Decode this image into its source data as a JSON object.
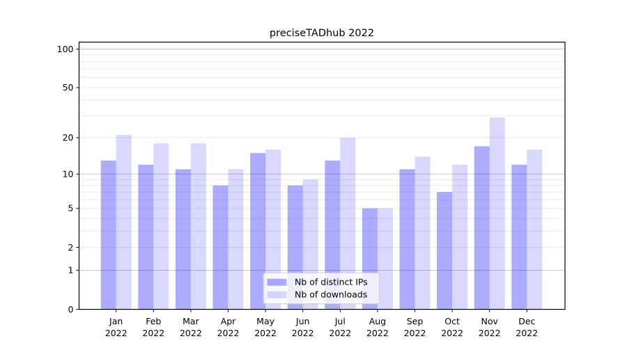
{
  "chart_data": {
    "type": "bar",
    "title": "preciseTADhub 2022",
    "categories": [
      "Jan",
      "Feb",
      "Mar",
      "Apr",
      "May",
      "Jun",
      "Jul",
      "Aug",
      "Sep",
      "Oct",
      "Nov",
      "Dec"
    ],
    "category_year": "2022",
    "series": [
      {
        "name": "Nb of distinct IPs",
        "color": "rgba(0,0,255,0.33)",
        "solid_color": "#aaaaff",
        "values": [
          13,
          12,
          11,
          8,
          15,
          8,
          13,
          5,
          11,
          7,
          17,
          12
        ]
      },
      {
        "name": "Nb of downloads",
        "color": "rgba(0,0,255,0.15)",
        "solid_color": "#d9d9ff",
        "values": [
          21,
          18,
          18,
          11,
          16,
          9,
          20,
          5,
          14,
          12,
          29,
          16
        ]
      }
    ],
    "y_axis": {
      "scale": "log10(value+1)",
      "tick_labels": [
        0,
        1,
        2,
        5,
        10,
        20,
        50,
        100
      ],
      "limit_top": 113,
      "limit_bottom": 0
    },
    "x_axis": {
      "tick_label_line2_is_year": true
    },
    "grid": {
      "major_values": [
        1,
        10,
        100
      ],
      "minor_values": [
        2,
        3,
        4,
        5,
        6,
        7,
        8,
        9,
        20,
        30,
        40,
        50,
        60,
        70,
        80,
        90
      ],
      "major_color": "#c6c6c6",
      "minor_color": "#ececec"
    },
    "legend": {
      "position": "lower-center",
      "background": "rgba(255,255,255,0.8)",
      "border_color": "#cccccc"
    },
    "frame_color": "#000000",
    "background_color": "#ffffff"
  }
}
